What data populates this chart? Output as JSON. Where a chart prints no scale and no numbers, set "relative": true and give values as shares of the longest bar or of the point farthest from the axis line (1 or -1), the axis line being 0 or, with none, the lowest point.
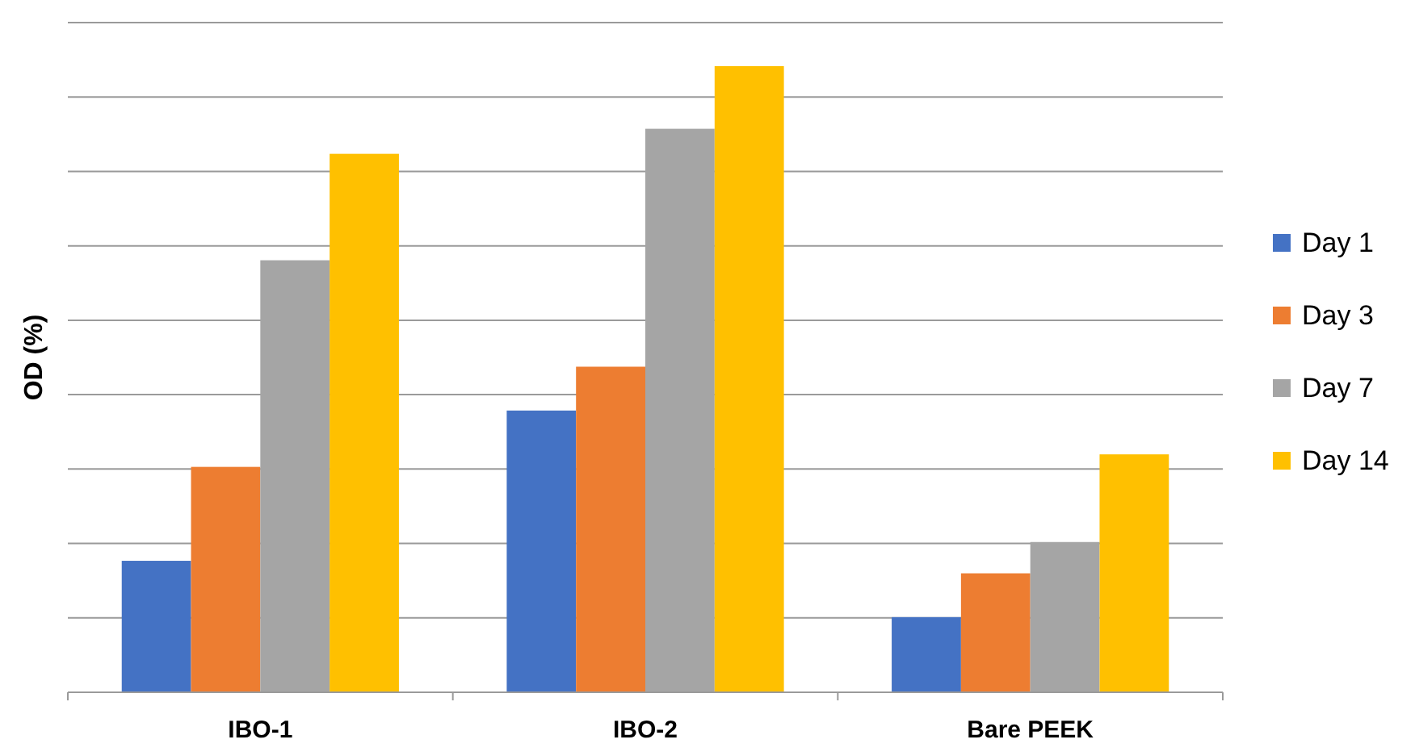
{
  "chart_data": {
    "type": "bar",
    "ylabel": "OD (%)",
    "relative": true,
    "grid": true,
    "legend": "right",
    "categories": [
      "IBO-1",
      "IBO-2",
      "Bare PEEK"
    ],
    "series": [
      {
        "name": "Day 1",
        "color": "#4472c4",
        "values": [
          0.21,
          0.45,
          0.12
        ]
      },
      {
        "name": "Day 3",
        "color": "#ed7d31",
        "values": [
          0.36,
          0.52,
          0.19
        ]
      },
      {
        "name": "Day 7",
        "color": "#a5a5a5",
        "values": [
          0.69,
          0.9,
          0.24
        ]
      },
      {
        "name": "Day 14",
        "color": "#ffc000",
        "values": [
          0.86,
          1,
          0.38
        ]
      }
    ]
  }
}
